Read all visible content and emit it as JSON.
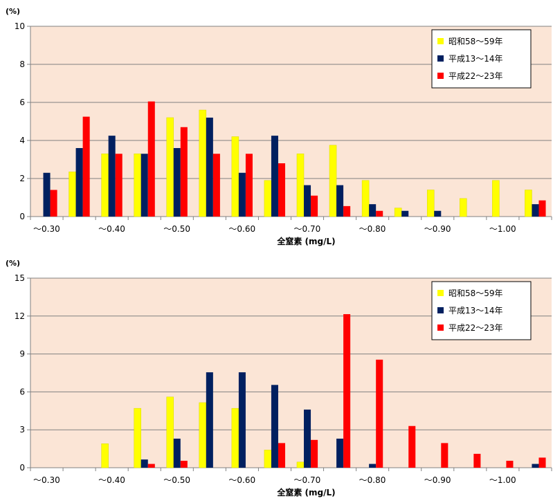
{
  "colors": {
    "plot_bg": "#FBE5D6",
    "grid": "#808080",
    "series": [
      "#FFFF00",
      "#002060",
      "#FF0000"
    ]
  },
  "chart_data": [
    {
      "type": "bar",
      "title": "",
      "unit_label": "(%)",
      "xlabel": "全窒素 (mg/L)",
      "ylabel": "",
      "ylim": [
        0,
        10
      ],
      "yticks": [
        0,
        2,
        4,
        6,
        8,
        10
      ],
      "grid": true,
      "legend_position": "top-right",
      "categories": [
        "〜0.30",
        "〜0.35",
        "〜0.40",
        "〜0.45",
        "〜0.50",
        "〜0.55",
        "〜0.60",
        "〜0.65",
        "〜0.70",
        "〜0.75",
        "〜0.80",
        "〜0.85",
        "〜0.90",
        "〜0.95",
        "〜1.00",
        "〜1.05"
      ],
      "tick_labels": [
        "〜0.30",
        "〜0.40",
        "〜0.50",
        "〜0.60",
        "〜0.70",
        "〜0.80",
        "〜0.90",
        "〜1.00"
      ],
      "series": [
        {
          "name": "昭和58〜59年",
          "values": [
            0,
            2.35,
            3.3,
            3.3,
            5.2,
            5.6,
            4.2,
            1.9,
            3.3,
            3.75,
            1.9,
            0.45,
            1.4,
            0.95,
            1.9,
            1.4
          ]
        },
        {
          "name": "平成13〜14年",
          "values": [
            2.3,
            3.6,
            4.25,
            3.3,
            3.6,
            5.2,
            2.3,
            4.25,
            1.65,
            1.65,
            0.65,
            0.3,
            0.3,
            0,
            0,
            0.65
          ]
        },
        {
          "name": "平成22〜23年",
          "values": [
            1.4,
            5.25,
            3.3,
            6.05,
            4.7,
            3.3,
            3.3,
            2.8,
            1.1,
            0.55,
            0.3,
            0,
            0,
            0,
            0,
            0.85
          ]
        }
      ]
    },
    {
      "type": "bar",
      "title": "",
      "unit_label": "(%)",
      "xlabel": "全窒素 (mg/L)",
      "ylabel": "",
      "ylim": [
        0,
        15
      ],
      "yticks": [
        0,
        3,
        6,
        9,
        12,
        15
      ],
      "grid": true,
      "legend_position": "top-right",
      "categories": [
        "〜0.30",
        "〜0.35",
        "〜0.40",
        "〜0.45",
        "〜0.50",
        "〜0.55",
        "〜0.60",
        "〜0.65",
        "〜0.70",
        "〜0.75",
        "〜0.80",
        "〜0.85",
        "〜0.90",
        "〜0.95",
        "〜1.00",
        "〜1.05"
      ],
      "tick_labels": [
        "〜0.30",
        "〜0.40",
        "〜0.50",
        "〜0.60",
        "〜0.70",
        "〜0.80",
        "〜0.90",
        "〜1.00"
      ],
      "series": [
        {
          "name": "昭和58〜59年",
          "values": [
            0,
            0,
            1.9,
            4.7,
            5.6,
            5.15,
            4.7,
            1.4,
            0.45,
            0,
            0,
            0,
            0,
            0,
            0,
            0
          ]
        },
        {
          "name": "平成13〜14年",
          "values": [
            0,
            0,
            0,
            0.65,
            2.3,
            7.55,
            7.55,
            6.55,
            4.6,
            2.3,
            0.3,
            0,
            0,
            0,
            0,
            0.3
          ]
        },
        {
          "name": "平成22〜23年",
          "values": [
            0,
            0,
            0,
            0.3,
            0.55,
            0,
            0,
            1.95,
            2.2,
            12.15,
            8.55,
            3.3,
            1.95,
            1.1,
            0.55,
            0.8
          ]
        }
      ]
    }
  ]
}
